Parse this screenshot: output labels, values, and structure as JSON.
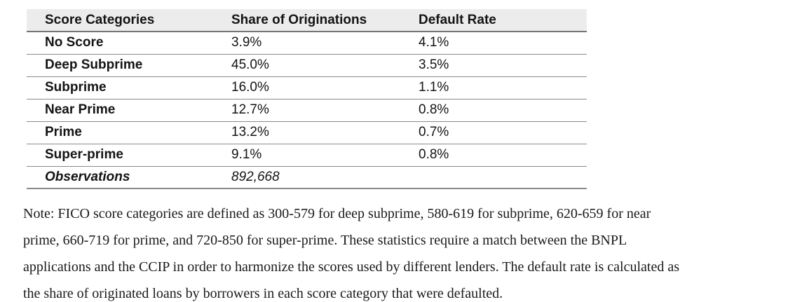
{
  "table": {
    "columns": [
      "Score Categories",
      "Share of Originations",
      "Default Rate"
    ],
    "rows": [
      {
        "category": "No Score",
        "share": "3.9%",
        "default_rate": "4.1%"
      },
      {
        "category": "Deep Subprime",
        "share": "45.0%",
        "default_rate": "3.5%"
      },
      {
        "category": "Subprime",
        "share": "16.0%",
        "default_rate": "1.1%"
      },
      {
        "category": "Near Prime",
        "share": "12.7%",
        "default_rate": "0.8%"
      },
      {
        "category": "Prime",
        "share": "13.2%",
        "default_rate": "0.7%"
      },
      {
        "category": "Super-prime",
        "share": "9.1%",
        "default_rate": "0.8%"
      }
    ],
    "footer": {
      "label": "Observations",
      "value": "892,668"
    }
  },
  "note": {
    "lines": [
      "Note: FICO score categories are defined as 300-579 for deep subprime, 580-619 for subprime, 620-659 for near",
      "prime, 660-719 for prime, and 720-850 for super-prime. These statistics require a match between the BNPL",
      "applications and the CCIP in order to harmonize the scores used by different lenders. The default rate is calculated as",
      "the share of originated loans by borrowers in each score category that were defaulted."
    ]
  },
  "colors": {
    "header_background": "#ececec",
    "rule_line": "#8a8a8a",
    "text": "#141414"
  }
}
